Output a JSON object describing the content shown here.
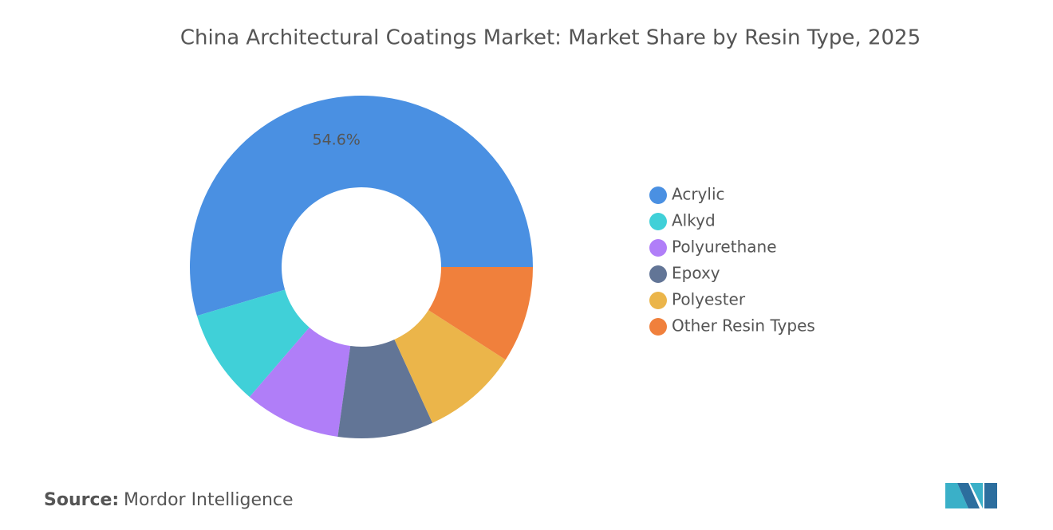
{
  "chart_data": {
    "type": "donut",
    "title": "China Architectural Coatings Market: Market Share by Resin Type, 2025",
    "categories": [
      "Acrylic",
      "Alkyd",
      "Polyurethane",
      "Epoxy",
      "Polyester",
      "Other Resin Types"
    ],
    "values": [
      54.6,
      9.1,
      9.1,
      9.0,
      9.1,
      9.1
    ],
    "value_labels": [
      "54.6%",
      null,
      null,
      null,
      null,
      null
    ],
    "colors": [
      "#4a90e2",
      "#40d0d8",
      "#b07ef8",
      "#627596",
      "#ebb54a",
      "#f0803c"
    ],
    "legend": "right"
  },
  "source": {
    "label": "Source:",
    "text": "Mordor Intelligence"
  }
}
